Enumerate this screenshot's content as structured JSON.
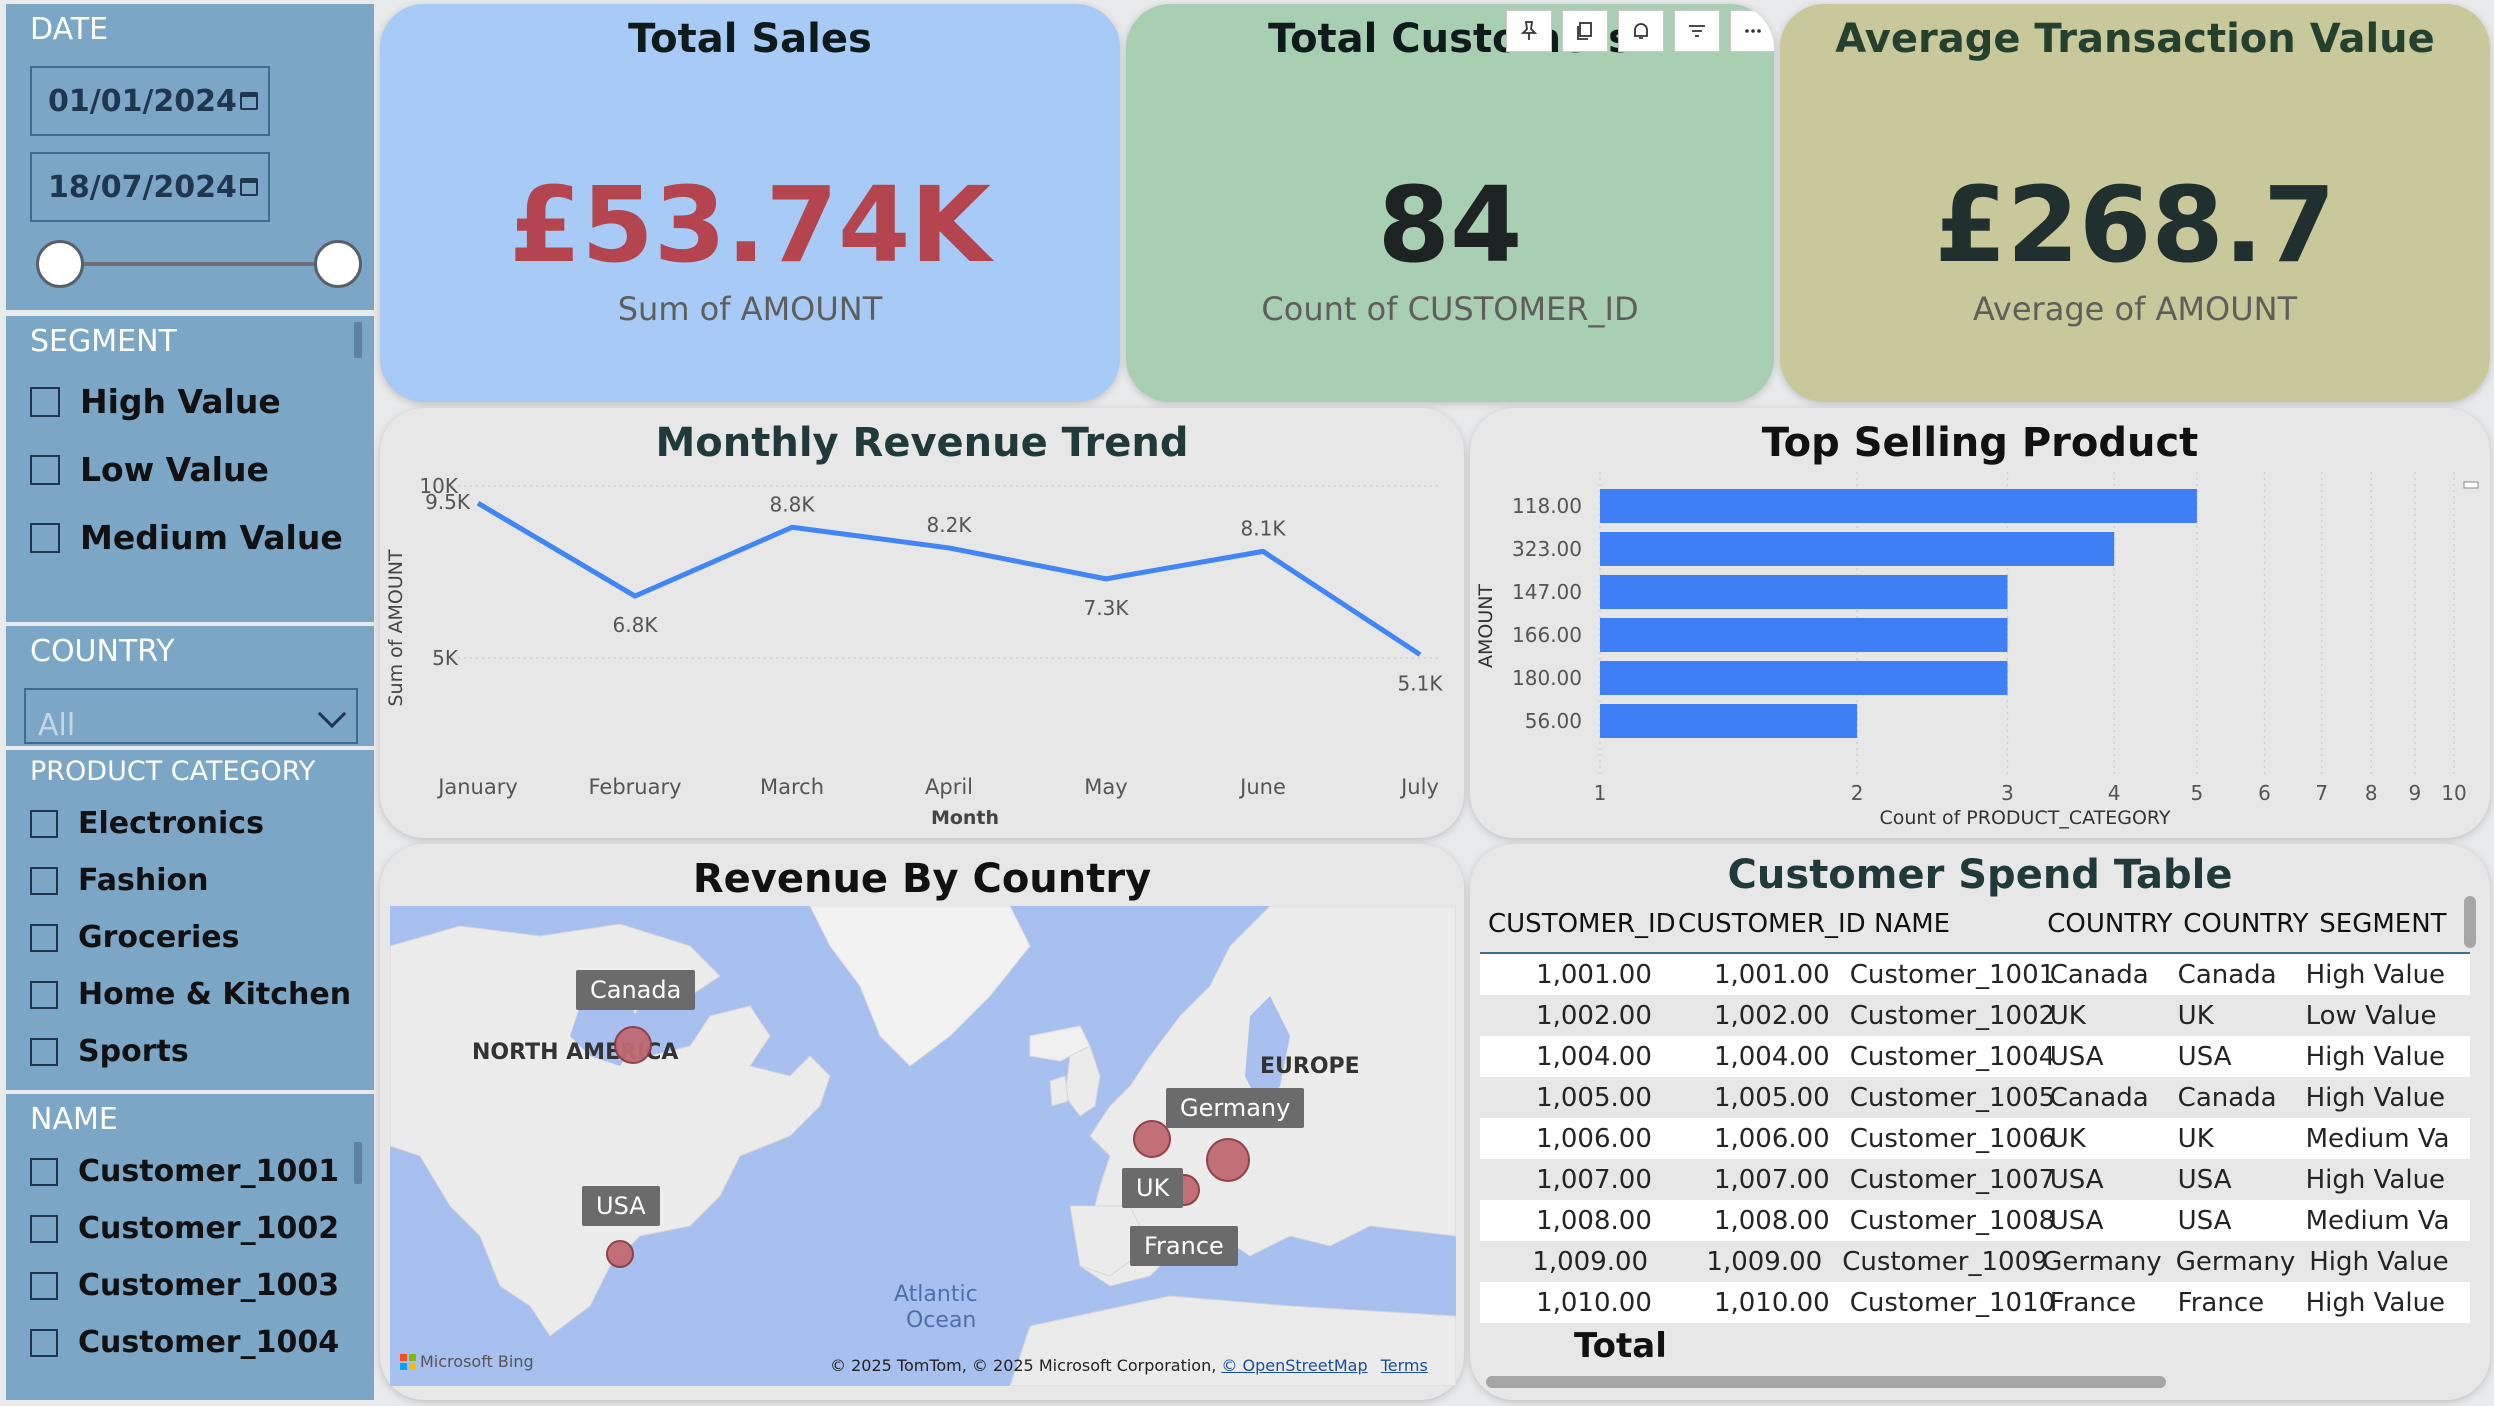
{
  "filters": {
    "date": {
      "title": "DATE",
      "start": "01/01/2024",
      "end": "18/07/2024"
    },
    "segment": {
      "title": "SEGMENT",
      "options": [
        "High Value",
        "Low Value",
        "Medium Value"
      ]
    },
    "country": {
      "title": "COUNTRY",
      "selected": "All"
    },
    "product_category": {
      "title": "PRODUCT CATEGORY",
      "options": [
        "Electronics",
        "Fashion",
        "Groceries",
        "Home & Kitchen",
        "Sports"
      ]
    },
    "name": {
      "title": "NAME",
      "options": [
        "Customer_1001",
        "Customer_1002",
        "Customer_1003",
        "Customer_1004"
      ]
    }
  },
  "kpis": {
    "total_sales": {
      "title": "Total Sales",
      "value": "£53.74K",
      "subtitle": "Sum of AMOUNT",
      "bg": "#a7cbf6",
      "value_color": "#b4454e"
    },
    "total_customers": {
      "title": "Total Customers",
      "value": "84",
      "subtitle": "Count of CUSTOMER_ID",
      "bg": "#a8cfb1",
      "value_color": "#1d2222"
    },
    "avg_transaction": {
      "title": "Average Transaction Value",
      "value": "£268.7",
      "subtitle": "Average of AMOUNT",
      "bg": "#c8c89b",
      "value_color": "#20302e"
    }
  },
  "visual_header": {
    "icons": [
      "pin-icon",
      "copy-icon",
      "bell-icon",
      "filter-icon",
      "more-icon"
    ]
  },
  "chart_data": [
    {
      "type": "line",
      "title": "Monthly Revenue Trend",
      "xlabel": "Month",
      "ylabel": "Sum of AMOUNT",
      "categories": [
        "January",
        "February",
        "March",
        "April",
        "May",
        "June",
        "July"
      ],
      "values": [
        9500,
        6800,
        8800,
        8200,
        7300,
        8100,
        5100
      ],
      "data_labels": [
        "9.5K",
        "6.8K",
        "8.8K",
        "8.2K",
        "7.3K",
        "8.1K",
        "5.1K"
      ],
      "y_ticks": [
        "10K",
        "5K"
      ],
      "ylim": [
        5000,
        10000
      ],
      "color": "#4285f4",
      "grid": true
    },
    {
      "type": "bar",
      "orientation": "horizontal",
      "title": "Top Selling Product",
      "xlabel": "Count of PRODUCT_CATEGORY",
      "ylabel": "AMOUNT",
      "categories": [
        "118.00",
        "323.00",
        "147.00",
        "166.00",
        "180.00",
        "56.00"
      ],
      "values": [
        5,
        4,
        3,
        3,
        3,
        2
      ],
      "x_scale": "log",
      "x_ticks": [
        "1",
        "2",
        "3",
        "4",
        "5",
        "6",
        "7",
        "8",
        "9",
        "10"
      ],
      "xlim": [
        1,
        10
      ],
      "color": "#3f7ff5",
      "grid": true
    }
  ],
  "map": {
    "title": "Revenue By Country",
    "regions": [
      "NORTH AMERICA",
      "EUROPE"
    ],
    "ocean": [
      "Atlantic",
      "Ocean"
    ],
    "points": [
      {
        "label": "Canada"
      },
      {
        "label": "USA"
      },
      {
        "label": "UK"
      },
      {
        "label": "Germany"
      },
      {
        "label": "France"
      }
    ],
    "attribution": "© 2025 TomTom, © 2025 Microsoft Corporation,",
    "attribution_link": "© OpenStreetMap",
    "terms": "Terms",
    "logo": "Microsoft Bing"
  },
  "table": {
    "title": "Customer Spend Table",
    "columns": [
      "CUSTOMER_ID",
      "CUSTOMER_ID",
      "NAME",
      "COUNTRY",
      "COUNTRY",
      "SEGMENT"
    ],
    "rows": [
      [
        "1,001.00",
        "1,001.00",
        "Customer_1001",
        "Canada",
        "Canada",
        "High Value"
      ],
      [
        "1,002.00",
        "1,002.00",
        "Customer_1002",
        "UK",
        "UK",
        "Low Value"
      ],
      [
        "1,004.00",
        "1,004.00",
        "Customer_1004",
        "USA",
        "USA",
        "High Value"
      ],
      [
        "1,005.00",
        "1,005.00",
        "Customer_1005",
        "Canada",
        "Canada",
        "High Value"
      ],
      [
        "1,006.00",
        "1,006.00",
        "Customer_1006",
        "UK",
        "UK",
        "Medium Va"
      ],
      [
        "1,007.00",
        "1,007.00",
        "Customer_1007",
        "USA",
        "USA",
        "High Value"
      ],
      [
        "1,008.00",
        "1,008.00",
        "Customer_1008",
        "USA",
        "USA",
        "Medium Va"
      ],
      [
        "1,009.00",
        "1,009.00",
        "Customer_1009",
        "Germany",
        "Germany",
        "High Value"
      ],
      [
        "1,010.00",
        "1,010.00",
        "Customer_1010",
        "France",
        "France",
        "High Value"
      ]
    ],
    "total_label": "Total"
  }
}
